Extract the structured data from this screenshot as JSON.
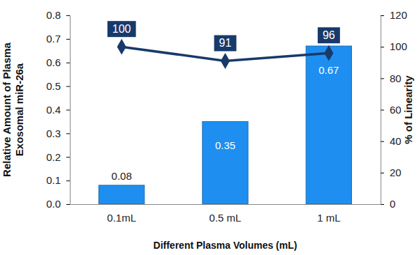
{
  "chart_data": {
    "type": "bar",
    "x_label": "Different Plasma Volumes (mL)",
    "y_label": "Relative Amount of Plasma\nExosomal miR-26a",
    "y2_label": "% of Linearity",
    "categories": [
      "0.1mL",
      "0.5 mL",
      "1 mL"
    ],
    "series": [
      {
        "type": "bar",
        "color": "#1e8ff0",
        "values": [
          0.08,
          0.35,
          0.67
        ]
      },
      {
        "type": "line",
        "axis": "y2",
        "color": "#173a6b",
        "marker": "diamond",
        "line_style": "solid",
        "values": [
          100,
          91,
          96
        ]
      }
    ],
    "ylim": [
      0,
      0.8
    ],
    "yticks": [
      {
        "value": 0,
        "label": "0.0"
      },
      0.1,
      0.2,
      0.3,
      0.4,
      0.5,
      0.6,
      0.7,
      0.8
    ],
    "y2lim": [
      0,
      120
    ],
    "y2ticks": [
      0,
      20,
      40,
      60,
      80,
      100,
      120
    ],
    "grid": false,
    "data_labels": true
  }
}
